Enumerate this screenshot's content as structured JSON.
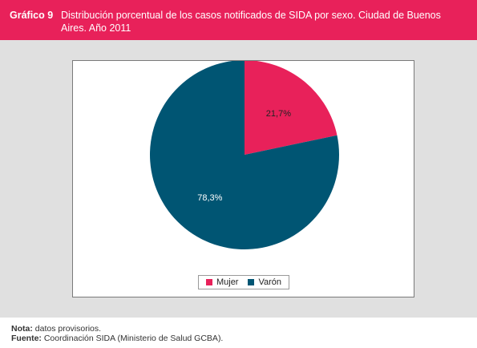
{
  "header": {
    "label": "Gráfico 9",
    "title": "Distribución porcentual de los casos notificados de SIDA por sexo. Ciudad de Buenos Aires. Año 2011"
  },
  "chart_data": {
    "type": "pie",
    "categories": [
      "Mujer",
      "Varón"
    ],
    "values": [
      21.7,
      78.3
    ],
    "data_labels": [
      "21,7%",
      "78,3%"
    ],
    "colors": [
      "#e8215a",
      "#005573"
    ],
    "start_angle": "12 o'clock",
    "direction": "clockwise",
    "legend_position": "bottom"
  },
  "footer": {
    "note_label": "Nota:",
    "note_text": " datos provisorios.",
    "source_label": "Fuente:",
    "source_text": " Coordinación SIDA (Ministerio de Salud GCBA)."
  },
  "colors": {
    "header_bg": "#e8215a",
    "panel_bg": "#e0e0e0"
  }
}
